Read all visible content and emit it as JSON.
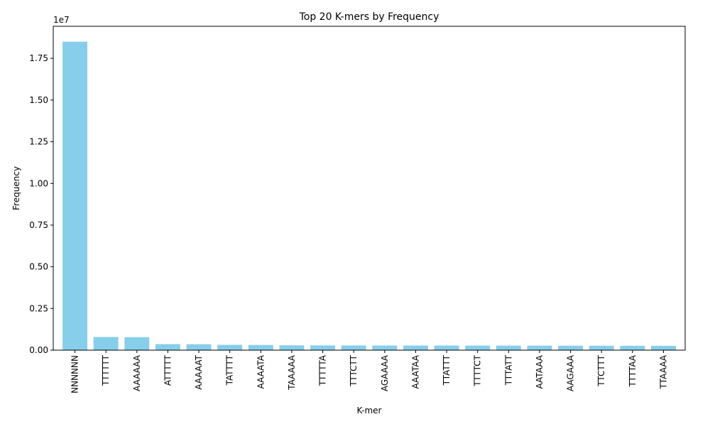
{
  "chart_data": {
    "type": "bar",
    "title": "Top 20 K-mers by Frequency",
    "xlabel": "K-mer",
    "ylabel": "Frequency",
    "offset_label": "1e7",
    "categories": [
      "NNNNNN",
      "TTTTTT",
      "AAAAAA",
      "ATTTTT",
      "AAAAAT",
      "TATTTT",
      "AAAATA",
      "TAAAAA",
      "TTTTTA",
      "TTTCTT",
      "AGAAAA",
      "AAATAA",
      "TTATTT",
      "TTTTCT",
      "TTTATT",
      "AATAAA",
      "AAGAAA",
      "TTCTTT",
      "TTTTAA",
      "TTAAAA"
    ],
    "values": [
      18500000,
      790000,
      780000,
      360000,
      355000,
      320000,
      310000,
      290000,
      285000,
      282000,
      280000,
      278000,
      276000,
      274000,
      272000,
      270000,
      268000,
      266000,
      264000,
      262000
    ],
    "ylim": [
      0,
      19425000
    ],
    "yticks": [
      0,
      2500000,
      5000000,
      7500000,
      10000000,
      12500000,
      15000000,
      17500000
    ],
    "ytick_labels": [
      "0.00",
      "0.25",
      "0.50",
      "0.75",
      "1.00",
      "1.25",
      "1.50",
      "1.75"
    ],
    "bar_color": "#87CEEB",
    "grid": false,
    "legend": "none"
  }
}
